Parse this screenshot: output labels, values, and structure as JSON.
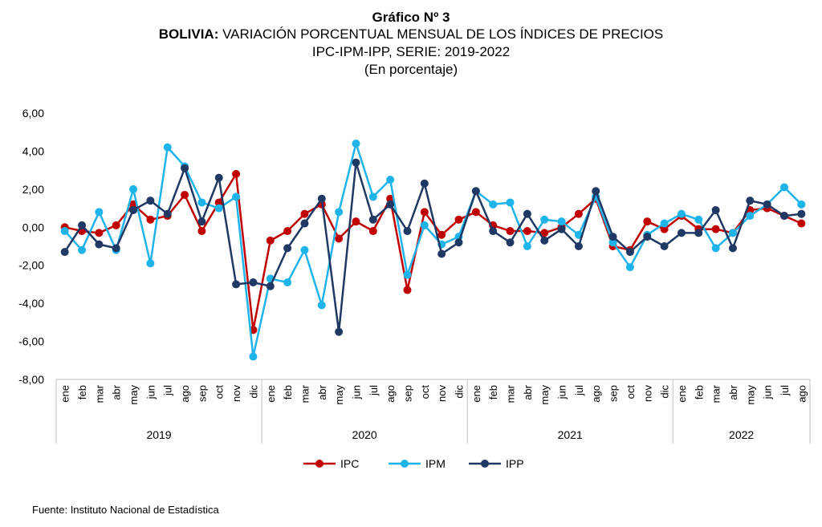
{
  "header": {
    "title": "Gráfico Nº 3",
    "subtitle_bold": "BOLIVIA:",
    "subtitle": "VARIACIÓN PORCENTUAL MENSUAL DE LOS ÍNDICES DE PRECIOS",
    "subtitle2": "IPC-IPM-IPP, SERIE: 2019-2022",
    "units": "(En porcentaje)"
  },
  "footer": {
    "source": "Fuente: Instituto Nacional de Estadística"
  },
  "chart_data": {
    "type": "line",
    "categories": [
      "ene",
      "feb",
      "mar",
      "abr",
      "may",
      "jun",
      "jul",
      "ago",
      "sep",
      "oct",
      "nov",
      "dic",
      "ene",
      "feb",
      "mar",
      "abr",
      "may",
      "jun",
      "jul",
      "ago",
      "sep",
      "oct",
      "nov",
      "dic",
      "ene",
      "feb",
      "mar",
      "abr",
      "may",
      "jun",
      "jul",
      "ago",
      "sep",
      "oct",
      "nov",
      "dic",
      "ene",
      "feb",
      "mar",
      "abr",
      "may",
      "jun",
      "jul",
      "ago"
    ],
    "years": [
      {
        "label": "2019",
        "start": 0,
        "end": 11
      },
      {
        "label": "2020",
        "start": 12,
        "end": 23
      },
      {
        "label": "2021",
        "start": 24,
        "end": 35
      },
      {
        "label": "2022",
        "start": 36,
        "end": 43
      }
    ],
    "ylim": [
      -8,
      6
    ],
    "yticks": [
      6,
      4,
      2,
      0,
      -2,
      -4,
      -6,
      -8
    ],
    "ytick_labels": [
      "6,00",
      "4,00",
      "2,00",
      "0,00",
      "-2,00",
      "-4,00",
      "-6,00",
      "-8,00"
    ],
    "legend_position": "bottom",
    "series": [
      {
        "name": "IPC",
        "color": "#c00000",
        "values": [
          0.0,
          -0.2,
          -0.3,
          0.1,
          1.2,
          0.4,
          0.6,
          1.7,
          -0.2,
          1.3,
          2.8,
          -5.4,
          -0.7,
          -0.2,
          0.7,
          1.2,
          -0.6,
          0.3,
          -0.2,
          1.5,
          -3.3,
          0.8,
          -0.4,
          0.4,
          0.8,
          0.1,
          -0.2,
          -0.2,
          -0.3,
          0.0,
          0.7,
          1.5,
          -1.0,
          -1.2,
          0.3,
          -0.1,
          0.6,
          -0.1,
          -0.1,
          -0.3,
          0.9,
          1.0,
          0.6,
          0.2
        ]
      },
      {
        "name": "IPM",
        "color": "#1eb4ea",
        "values": [
          -0.2,
          -1.2,
          0.8,
          -1.2,
          2.0,
          -1.9,
          4.2,
          3.2,
          1.3,
          1.0,
          1.6,
          -6.8,
          -2.7,
          -2.9,
          -1.2,
          -4.1,
          0.8,
          4.4,
          1.6,
          2.5,
          -2.5,
          0.1,
          -0.9,
          -0.5,
          1.9,
          1.2,
          1.3,
          -1.0,
          0.4,
          0.3,
          -0.4,
          1.6,
          -0.8,
          -2.1,
          -0.4,
          0.2,
          0.7,
          0.4,
          -1.1,
          -0.3,
          0.6,
          1.2,
          2.1,
          1.2
        ]
      },
      {
        "name": "IPP",
        "color": "#203864",
        "values": [
          -1.3,
          0.1,
          -0.9,
          -1.1,
          0.9,
          1.4,
          0.7,
          3.1,
          0.3,
          2.6,
          -3.0,
          -2.9,
          -3.1,
          -1.1,
          0.2,
          1.5,
          -5.5,
          3.4,
          0.4,
          1.2,
          -0.2,
          2.3,
          -1.4,
          -0.8,
          1.9,
          -0.2,
          -0.8,
          0.7,
          -0.7,
          -0.1,
          -1.0,
          1.9,
          -0.5,
          -1.3,
          -0.5,
          -1.0,
          -0.3,
          -0.3,
          0.9,
          -1.1,
          1.4,
          1.2,
          0.6,
          0.7
        ]
      }
    ]
  }
}
